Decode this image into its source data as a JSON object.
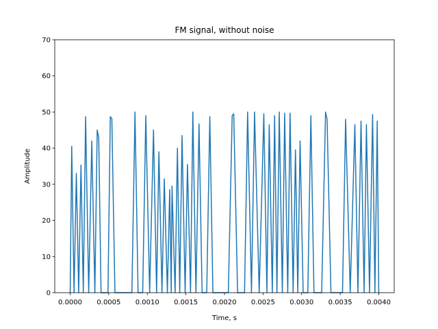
{
  "chart_data": {
    "type": "line",
    "title": "FM signal, without noise",
    "xlabel": "Time, s",
    "ylabel": "Amplitude",
    "color": "#1f77b4",
    "x": [
      0,
      2e-05,
      5e-05,
      8e-05,
      0.00011,
      0.00014,
      0.00017,
      0.0002,
      0.00024,
      0.00028,
      0.00032,
      0.00035,
      0.00037,
      0.0004,
      0.00049,
      0.00052,
      0.00054,
      0.00058,
      0.0008,
      0.00084,
      0.00088,
      0.00094,
      0.00098,
      0.00103,
      0.00108,
      0.00112,
      0.00115,
      0.00119,
      0.00122,
      0.00126,
      0.00129,
      0.00131,
      0.00132,
      0.00136,
      0.00139,
      0.00142,
      0.00145,
      0.00149,
      0.00152,
      0.00156,
      0.00159,
      0.00163,
      0.00167,
      0.00171,
      0.00177,
      0.00181,
      0.00185,
      0.00205,
      0.0021,
      0.00212,
      0.00217,
      0.00226,
      0.0023,
      0.00235,
      0.00239,
      0.00245,
      0.00251,
      0.00255,
      0.00258,
      0.00262,
      0.00265,
      0.00268,
      0.00271,
      0.00275,
      0.00278,
      0.00282,
      0.00285,
      0.00289,
      0.00292,
      0.00295,
      0.00298,
      0.00302,
      0.00308,
      0.00312,
      0.00316,
      0.00326,
      0.00331,
      0.00333,
      0.00338,
      0.00353,
      0.00357,
      0.00363,
      0.00369,
      0.00373,
      0.00377,
      0.00381,
      0.00384,
      0.00388,
      0.00392,
      0.00395,
      0.00398,
      0.004
    ],
    "values": [
      0,
      40.5,
      0,
      33,
      0,
      35.3,
      0,
      48.7,
      0,
      42,
      0,
      45,
      43,
      0,
      0,
      48.7,
      48.2,
      0,
      0,
      50,
      0,
      0,
      49,
      0,
      45,
      0,
      39,
      0,
      31.5,
      0,
      28.5,
      0,
      29.5,
      0,
      40,
      0,
      43.5,
      0,
      35.5,
      0,
      50,
      0,
      46.7,
      0,
      0,
      48.7,
      0,
      0,
      49,
      49.5,
      0,
      0,
      50,
      0,
      50,
      0,
      49.5,
      0,
      46.5,
      0,
      49,
      0,
      50,
      0,
      49.7,
      0,
      49.7,
      0,
      39.5,
      0,
      42,
      0,
      0,
      49,
      0,
      0,
      50,
      48,
      0,
      0,
      48,
      0,
      46.5,
      0,
      47.5,
      0,
      46.5,
      0,
      49.3,
      0,
      47.5,
      0
    ],
    "xlim": [
      -0.0002,
      0.0042
    ],
    "ylim": [
      0,
      70
    ],
    "xticks": [
      {
        "value": 0,
        "label": "0.0000"
      },
      {
        "value": 0.0005,
        "label": "0.0005"
      },
      {
        "value": 0.001,
        "label": "0.0010"
      },
      {
        "value": 0.0015,
        "label": "0.0015"
      },
      {
        "value": 0.002,
        "label": "0.0020"
      },
      {
        "value": 0.0025,
        "label": "0.0025"
      },
      {
        "value": 0.003,
        "label": "0.0030"
      },
      {
        "value": 0.0035,
        "label": "0.0035"
      },
      {
        "value": 0.004,
        "label": "0.0040"
      }
    ],
    "yticks": [
      0,
      10,
      20,
      30,
      40,
      50,
      60,
      70
    ]
  }
}
